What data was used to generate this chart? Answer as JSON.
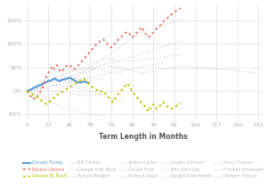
{
  "title": "",
  "xlabel": "Term Length in Months",
  "ylabel": "",
  "xticks": [
    0,
    13,
    26,
    39,
    52,
    65,
    78,
    91,
    104,
    117,
    130,
    143
  ],
  "yticks": [
    -0.5,
    0.0,
    0.5,
    1.0,
    1.5
  ],
  "ylim": [
    -0.65,
    1.85
  ],
  "xlim": [
    -2,
    145
  ],
  "background_color": "#ffffff",
  "grid_color": "#dddddd",
  "series": [
    {
      "name": "Donald Trump",
      "color": "#5B9BD5",
      "linestyle": "solid",
      "linewidth": 1.5,
      "months": [
        0,
        1,
        2,
        3,
        4,
        5,
        6,
        7,
        8,
        9,
        10,
        11,
        12,
        13,
        14,
        15,
        16,
        17,
        18,
        19,
        20,
        21,
        22,
        23,
        24,
        25,
        26,
        27,
        28,
        29,
        30,
        31,
        32,
        33,
        34,
        35,
        36,
        37,
        38
      ],
      "values": [
        0.0,
        0.01,
        0.03,
        0.04,
        0.07,
        0.08,
        0.09,
        0.11,
        0.12,
        0.14,
        0.16,
        0.18,
        0.19,
        0.22,
        0.21,
        0.23,
        0.25,
        0.27,
        0.24,
        0.22,
        0.21,
        0.23,
        0.24,
        0.25,
        0.26,
        0.27,
        0.28,
        0.27,
        0.25,
        0.23,
        0.2,
        0.19,
        0.18,
        0.18,
        0.19,
        0.2,
        0.19,
        0.18,
        0.17
      ]
    },
    {
      "name": "Barack Obama",
      "color": "#E8756A",
      "linestyle": "dotted",
      "linewidth": 1.3,
      "months": [
        0,
        1,
        2,
        3,
        4,
        5,
        6,
        7,
        8,
        9,
        10,
        11,
        12,
        13,
        14,
        15,
        16,
        17,
        18,
        19,
        20,
        21,
        22,
        23,
        24,
        25,
        26,
        27,
        28,
        29,
        30,
        31,
        32,
        33,
        34,
        35,
        36,
        37,
        38,
        39,
        40,
        41,
        42,
        43,
        44,
        45,
        46,
        47,
        48,
        49,
        50,
        51,
        52,
        53,
        54,
        55,
        56,
        57,
        58,
        59,
        60,
        61,
        62,
        63,
        64,
        65,
        66,
        67,
        68,
        69,
        70,
        71,
        72,
        73,
        74,
        75,
        76,
        77,
        78,
        79,
        80,
        81,
        82,
        83,
        84,
        85,
        86,
        87,
        88,
        89,
        90,
        91,
        92,
        93,
        94,
        95
      ],
      "values": [
        0.0,
        -0.06,
        -0.12,
        -0.1,
        -0.15,
        -0.18,
        -0.13,
        -0.08,
        -0.02,
        0.04,
        0.12,
        0.22,
        0.32,
        0.38,
        0.44,
        0.5,
        0.44,
        0.5,
        0.55,
        0.52,
        0.44,
        0.4,
        0.44,
        0.48,
        0.52,
        0.54,
        0.56,
        0.52,
        0.5,
        0.46,
        0.5,
        0.52,
        0.56,
        0.6,
        0.64,
        0.68,
        0.72,
        0.76,
        0.8,
        0.84,
        0.88,
        0.92,
        0.96,
        1.0,
        1.02,
        1.06,
        1.08,
        1.1,
        1.06,
        1.02,
        0.98,
        0.95,
        0.92,
        0.96,
        1.0,
        1.04,
        1.08,
        1.12,
        1.14,
        1.18,
        1.22,
        1.24,
        1.26,
        1.22,
        1.18,
        1.14,
        1.18,
        1.22,
        1.24,
        1.28,
        1.32,
        1.36,
        1.28,
        1.22,
        1.18,
        1.14,
        1.18,
        1.22,
        1.24,
        1.28,
        1.32,
        1.36,
        1.38,
        1.42,
        1.46,
        1.5,
        1.52,
        1.56,
        1.6,
        1.62,
        1.64,
        1.68,
        1.7,
        1.72,
        1.74,
        1.76
      ]
    },
    {
      "name": "George W. Bush",
      "color": "#BFBF00",
      "linestyle": "dotted",
      "linewidth": 1.3,
      "months": [
        0,
        1,
        2,
        3,
        4,
        5,
        6,
        7,
        8,
        9,
        10,
        11,
        12,
        13,
        14,
        15,
        16,
        17,
        18,
        19,
        20,
        21,
        22,
        23,
        24,
        25,
        26,
        27,
        28,
        29,
        30,
        31,
        32,
        33,
        34,
        35,
        36,
        37,
        38,
        39,
        40,
        41,
        42,
        43,
        44,
        45,
        46,
        47,
        48,
        49,
        50,
        51,
        52,
        53,
        54,
        55,
        56,
        57,
        58,
        59,
        60,
        61,
        62,
        63,
        64,
        65,
        66,
        67,
        68,
        69,
        70,
        71,
        72,
        73,
        74,
        75,
        76,
        77,
        78,
        79,
        80,
        81,
        82,
        83,
        84,
        85,
        86,
        87,
        88,
        89,
        90,
        91,
        92,
        93,
        94,
        95
      ],
      "values": [
        0.0,
        -0.02,
        -0.05,
        -0.07,
        -0.09,
        -0.11,
        -0.13,
        -0.16,
        -0.19,
        -0.21,
        -0.24,
        -0.26,
        -0.28,
        -0.26,
        -0.22,
        -0.18,
        -0.16,
        -0.13,
        -0.1,
        -0.08,
        -0.06,
        -0.03,
        -0.01,
        0.01,
        0.03,
        0.06,
        0.08,
        0.1,
        0.12,
        0.14,
        0.16,
        0.18,
        0.2,
        0.22,
        0.24,
        0.26,
        0.22,
        0.18,
        0.15,
        0.12,
        0.09,
        0.06,
        0.04,
        0.02,
        0.0,
        -0.02,
        -0.01,
        0.0,
        -0.04,
        -0.08,
        -0.12,
        -0.16,
        -0.2,
        -0.24,
        -0.18,
        -0.12,
        -0.08,
        -0.04,
        0.0,
        0.04,
        0.08,
        0.12,
        0.16,
        0.1,
        0.04,
        -0.02,
        -0.06,
        -0.1,
        -0.14,
        -0.18,
        -0.22,
        -0.26,
        -0.3,
        -0.34,
        -0.38,
        -0.44,
        -0.38,
        -0.32,
        -0.28,
        -0.34,
        -0.38,
        -0.36,
        -0.32,
        -0.28,
        -0.24,
        -0.28,
        -0.32,
        -0.34,
        -0.36,
        -0.38,
        -0.36,
        -0.34,
        -0.32,
        -0.3,
        -0.28,
        -0.26
      ]
    },
    {
      "name": "Bill Clinton",
      "color": "#D8D8D8",
      "linestyle": "dotted",
      "linewidth": 0.8,
      "months": [
        0,
        4,
        8,
        12,
        16,
        20,
        24,
        28,
        32,
        36,
        40,
        44,
        48,
        52,
        56,
        60,
        64,
        68,
        72,
        76,
        80,
        84,
        88,
        92,
        96
      ],
      "values": [
        0.0,
        0.02,
        0.05,
        0.08,
        0.12,
        0.18,
        0.24,
        0.3,
        0.38,
        0.46,
        0.54,
        0.62,
        0.7,
        0.8,
        0.9,
        1.0,
        1.1,
        1.18,
        1.26,
        1.32,
        1.36,
        1.4,
        1.44,
        1.48,
        1.52
      ]
    },
    {
      "name": "George H.W. Bush",
      "color": "#D8D8D8",
      "linestyle": "dotted",
      "linewidth": 0.8,
      "months": [
        0,
        6,
        12,
        18,
        24,
        30,
        36,
        42,
        48
      ],
      "values": [
        0.0,
        0.1,
        0.2,
        0.24,
        0.22,
        0.26,
        0.28,
        0.26,
        0.24
      ]
    },
    {
      "name": "Ronald Reagan",
      "color": "#D8D8D8",
      "linestyle": "dotted",
      "linewidth": 0.8,
      "months": [
        0,
        6,
        12,
        18,
        24,
        30,
        36,
        42,
        48,
        54,
        60,
        66,
        72,
        78,
        84,
        90,
        96
      ],
      "values": [
        0.0,
        -0.06,
        -0.12,
        -0.04,
        0.12,
        0.28,
        0.42,
        0.52,
        0.58,
        0.62,
        0.66,
        0.72,
        0.8,
        0.88,
        0.94,
        1.0,
        1.06
      ]
    },
    {
      "name": "Jimmy Carter",
      "color": "#D8D8D8",
      "linestyle": "dotted",
      "linewidth": 0.8,
      "months": [
        0,
        6,
        12,
        18,
        24,
        30,
        36,
        42,
        48
      ],
      "values": [
        0.0,
        0.02,
        0.04,
        0.0,
        -0.04,
        -0.08,
        -0.1,
        -0.08,
        -0.06
      ]
    },
    {
      "name": "Gerald Ford",
      "color": "#D8D8D8",
      "linestyle": "dotted",
      "linewidth": 0.8,
      "months": [
        0,
        6,
        12,
        18,
        24,
        29
      ],
      "values": [
        0.0,
        0.1,
        0.18,
        0.22,
        0.2,
        0.18
      ]
    },
    {
      "name": "Richard Nixon",
      "color": "#D8D8D8",
      "linestyle": "dotted",
      "linewidth": 0.8,
      "months": [
        0,
        6,
        12,
        18,
        24,
        30,
        36,
        42,
        48,
        54,
        60
      ],
      "values": [
        0.0,
        0.04,
        0.08,
        0.12,
        0.1,
        0.06,
        0.02,
        -0.04,
        -0.12,
        -0.18,
        -0.22
      ]
    },
    {
      "name": "Lyndon Johnson",
      "color": "#D8D8D8",
      "linestyle": "dotted",
      "linewidth": 0.8,
      "months": [
        0,
        6,
        12,
        18,
        24,
        30,
        36,
        42,
        48,
        54,
        60
      ],
      "values": [
        0.0,
        0.12,
        0.22,
        0.3,
        0.38,
        0.44,
        0.48,
        0.46,
        0.42,
        0.38,
        0.34
      ]
    },
    {
      "name": "John Kennedy",
      "color": "#D8D8D8",
      "linestyle": "dotted",
      "linewidth": 0.8,
      "months": [
        0,
        6,
        12,
        18,
        24,
        30,
        34
      ],
      "values": [
        0.0,
        0.08,
        0.16,
        0.24,
        0.3,
        0.36,
        0.38
      ]
    },
    {
      "name": "Dwight Eisenhower",
      "color": "#D8D8D8",
      "linestyle": "dotted",
      "linewidth": 0.8,
      "months": [
        0,
        12,
        24,
        36,
        48,
        60,
        72,
        84,
        96
      ],
      "values": [
        0.0,
        0.18,
        0.36,
        0.54,
        0.7,
        0.62,
        0.66,
        0.72,
        0.78
      ]
    },
    {
      "name": "Harry Truman",
      "color": "#D8D8D8",
      "linestyle": "dotted",
      "linewidth": 0.8,
      "months": [
        0,
        12,
        24,
        36,
        48,
        60,
        72,
        84
      ],
      "values": [
        0.0,
        0.08,
        0.18,
        0.28,
        0.36,
        0.44,
        0.52,
        0.6
      ]
    },
    {
      "name": "Franklin Roosevelt",
      "color": "#D8D8D8",
      "linestyle": "dotted",
      "linewidth": 0.8,
      "months": [
        0,
        12,
        24,
        36,
        48,
        60,
        72,
        84,
        96,
        108,
        120,
        132,
        143
      ],
      "values": [
        0.0,
        0.28,
        0.48,
        0.38,
        0.56,
        0.46,
        0.38,
        0.46,
        0.54,
        0.5,
        0.46,
        0.42,
        0.38
      ]
    },
    {
      "name": "Herbert Hoover",
      "color": "#D8D8D8",
      "linestyle": "dotted",
      "linewidth": 0.8,
      "months": [
        0,
        12,
        24,
        36,
        48
      ],
      "values": [
        0.0,
        -0.18,
        -0.38,
        -0.48,
        -0.52
      ]
    }
  ],
  "legend_order": [
    [
      "Donald Trump",
      "#5B9BD5",
      "solid",
      1.5
    ],
    [
      "Barack Obama",
      "#E8756A",
      "dotted",
      1.3
    ],
    [
      "George W. Bush",
      "#BFBF00",
      "dotted",
      1.3
    ],
    [
      "Bill Clinton",
      "#D8D8D8",
      "dotted",
      0.8
    ],
    [
      "George H.W. Bush",
      "#D8D8D8",
      "dotted",
      0.8
    ],
    [
      "Ronald Reagan",
      "#D8D8D8",
      "dotted",
      0.8
    ],
    [
      "Jimmy Carter",
      "#D8D8D8",
      "dotted",
      0.8
    ],
    [
      "Gerald Ford",
      "#D8D8D8",
      "dotted",
      0.8
    ],
    [
      "Richard Nixon",
      "#D8D8D8",
      "dotted",
      0.8
    ],
    [
      "Lyndon Johnson",
      "#D8D8D8",
      "dotted",
      0.8
    ],
    [
      "John Kennedy",
      "#D8D8D8",
      "dotted",
      0.8
    ],
    [
      "Dwight Eisenhower",
      "#D8D8D8",
      "dotted",
      0.8
    ],
    [
      "Harry Truman",
      "#D8D8D8",
      "dotted",
      0.8
    ],
    [
      "Franklin Roosevelt",
      "#D8D8D8",
      "dotted",
      0.8
    ],
    [
      "Herbert Hoover",
      "#D8D8D8",
      "dotted",
      0.8
    ]
  ]
}
